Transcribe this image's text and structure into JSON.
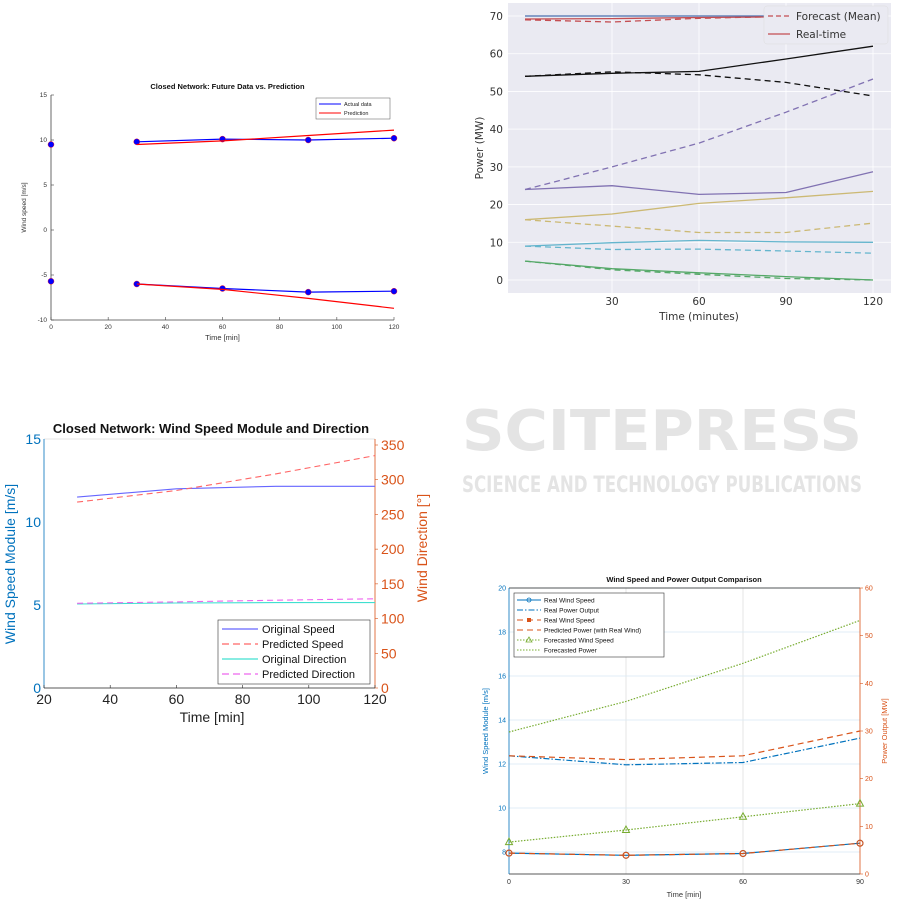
{
  "watermark": {
    "main": "SCITEPRESS",
    "sub": "SCIENCE AND TECHNOLOGY PUBLICATIONS"
  },
  "chart_data": [
    {
      "id": "chart1",
      "type": "line",
      "title": "Closed Network: Future Data vs. Prediction",
      "xlabel": "Time [min]",
      "ylabel": "Wind speed [m/s]",
      "xlim": [
        0,
        120
      ],
      "ylim": [
        -10,
        15
      ],
      "xticks": [
        0,
        20,
        40,
        60,
        80,
        100,
        120
      ],
      "yticks": [
        -10,
        -5,
        0,
        5,
        10,
        15
      ],
      "grid": false,
      "legend_position": "top-right",
      "legend": [
        "Actual data",
        "Prediction"
      ],
      "colors": {
        "actual": "#0000ff",
        "prediction": "#ff0000"
      },
      "history_points": [
        {
          "x": 0,
          "y": 9.5
        },
        {
          "x": 0,
          "y": -5.7
        }
      ],
      "series": [
        {
          "name": "Actual data",
          "component": "upper",
          "x": [
            30,
            60,
            90,
            120
          ],
          "y": [
            9.8,
            10.1,
            10.0,
            10.2
          ],
          "markers": true
        },
        {
          "name": "Prediction",
          "component": "upper",
          "x": [
            30,
            60,
            90,
            120
          ],
          "y": [
            9.5,
            9.9,
            10.5,
            11.1
          ],
          "markers": false
        },
        {
          "name": "Actual data",
          "component": "lower",
          "x": [
            30,
            60,
            90,
            120
          ],
          "y": [
            -6.0,
            -6.5,
            -6.9,
            -6.8
          ],
          "markers": true
        },
        {
          "name": "Prediction",
          "component": "lower",
          "x": [
            30,
            60,
            90,
            120
          ],
          "y": [
            -6.0,
            -6.6,
            -7.6,
            -8.7
          ],
          "markers": false
        }
      ]
    },
    {
      "id": "chart2",
      "type": "line",
      "title": "",
      "xlabel": "Time (minutes)",
      "ylabel": "Power (MW)",
      "xlim": [
        0,
        130
      ],
      "ylim": [
        -3,
        73
      ],
      "xticks": [
        30,
        60,
        90,
        120
      ],
      "yticks": [
        0,
        10,
        20,
        30,
        40,
        50,
        60,
        70
      ],
      "grid": true,
      "legend_position": "top-right",
      "legend": [
        "Forecast (Mean)",
        "Real-time"
      ],
      "series": [
        {
          "name": "Blue real-time",
          "color": "#4c72b0",
          "style": "solid",
          "x": [
            0,
            30,
            60,
            90,
            120
          ],
          "y": [
            70,
            70,
            70,
            70,
            70
          ]
        },
        {
          "name": "Red real-time",
          "color": "#c44e52",
          "style": "solid",
          "x": [
            0,
            30,
            60,
            90,
            120
          ],
          "y": [
            69.2,
            69.3,
            69.6,
            69.8,
            70
          ]
        },
        {
          "name": "Red forecast",
          "color": "#c44e52",
          "style": "dashed",
          "x": [
            0,
            30,
            60,
            90,
            120
          ],
          "y": [
            69,
            68.4,
            69.4,
            69.9,
            70
          ]
        },
        {
          "name": "Black real-time",
          "color": "#111111",
          "style": "solid",
          "x": [
            0,
            30,
            60,
            90,
            120
          ],
          "y": [
            54,
            54.8,
            55.3,
            58.6,
            62
          ]
        },
        {
          "name": "Black forecast",
          "color": "#111111",
          "style": "dashed",
          "x": [
            0,
            30,
            60,
            90,
            120
          ],
          "y": [
            54,
            55.2,
            54.4,
            52.4,
            48.8
          ]
        },
        {
          "name": "Purple forecast",
          "color": "#8172b2",
          "style": "dashed",
          "x": [
            0,
            30,
            60,
            90,
            120
          ],
          "y": [
            24,
            30,
            36.3,
            44.5,
            53.3
          ]
        },
        {
          "name": "Purple real-time",
          "color": "#8172b2",
          "style": "solid",
          "x": [
            0,
            30,
            60,
            90,
            120
          ],
          "y": [
            24,
            25,
            22.7,
            23.2,
            28.7
          ]
        },
        {
          "name": "Gold real-time",
          "color": "#ccb974",
          "style": "solid",
          "x": [
            0,
            30,
            60,
            90,
            120
          ],
          "y": [
            16,
            17.5,
            20.3,
            21.8,
            23.5
          ]
        },
        {
          "name": "Gold forecast",
          "color": "#ccb974",
          "style": "dashed",
          "x": [
            0,
            30,
            60,
            90,
            120
          ],
          "y": [
            16,
            14.3,
            12.6,
            12.6,
            15.1
          ]
        },
        {
          "name": "Cyan real-time",
          "color": "#64b5cd",
          "style": "solid",
          "x": [
            0,
            30,
            60,
            90,
            120
          ],
          "y": [
            9,
            9.9,
            10.5,
            10.1,
            10
          ]
        },
        {
          "name": "Cyan forecast",
          "color": "#64b5cd",
          "style": "dashed",
          "x": [
            0,
            30,
            60,
            90,
            120
          ],
          "y": [
            9,
            8.1,
            8.2,
            7.7,
            7.1
          ]
        },
        {
          "name": "Green real-time",
          "color": "#55a868",
          "style": "solid",
          "x": [
            0,
            30,
            60,
            90,
            120
          ],
          "y": [
            5,
            3,
            1.9,
            0.9,
            0
          ]
        },
        {
          "name": "Green forecast",
          "color": "#55a868",
          "style": "dashed",
          "x": [
            0,
            30,
            60,
            90,
            120
          ],
          "y": [
            5,
            2.7,
            1.5,
            0.4,
            0
          ]
        }
      ]
    },
    {
      "id": "chart3",
      "type": "line",
      "title": "Closed Network: Wind Speed Module and Direction",
      "xlabel": "Time [min]",
      "ylabel_left": "Wind Speed Module [m/s]",
      "ylabel_right": "Wind Direction [°]",
      "xlim": [
        20,
        120
      ],
      "ylim_left": [
        0,
        15
      ],
      "ylim_right": [
        0,
        360
      ],
      "xticks": [
        20,
        40,
        60,
        80,
        100,
        120
      ],
      "yticks_left": [
        0,
        5,
        10,
        15
      ],
      "yticks_right": [
        0,
        50,
        100,
        150,
        200,
        250,
        300,
        350
      ],
      "grid": false,
      "legend_position": "bottom-right",
      "legend": [
        "Original Speed",
        "Predicted Speed",
        "Original Direction",
        "Predicted Direction"
      ],
      "colors": {
        "left_axis": "#0072bd",
        "right_axis": "#d95319"
      },
      "series": [
        {
          "name": "Original Speed",
          "axis": "left",
          "color": "#6666ff",
          "style": "solid",
          "x": [
            30,
            60,
            90,
            120
          ],
          "y": [
            11.5,
            12.0,
            12.15,
            12.15
          ]
        },
        {
          "name": "Predicted Speed",
          "axis": "left",
          "color": "#ff6666",
          "style": "dashed",
          "x": [
            30,
            60,
            90,
            120
          ],
          "y": [
            11.2,
            11.9,
            12.9,
            14.0
          ]
        },
        {
          "name": "Original Direction",
          "axis": "right",
          "color": "#40e0d0",
          "style": "solid",
          "x": [
            30,
            60,
            90,
            120
          ],
          "y": [
            121,
            122.5,
            123,
            123
          ]
        },
        {
          "name": "Predicted Direction",
          "axis": "right",
          "color": "#ee66ee",
          "style": "dashed",
          "x": [
            30,
            60,
            90,
            120
          ],
          "y": [
            122,
            124,
            126.5,
            128.5
          ]
        }
      ]
    },
    {
      "id": "chart4",
      "type": "line",
      "title": "Wind Speed and Power Output Comparison",
      "xlabel": "Time [min]",
      "ylabel_left": "Wind Speed Module [m/s]",
      "ylabel_right": "Power Output [MW]",
      "xlim": [
        0,
        90
      ],
      "ylim_left": [
        7,
        20
      ],
      "ylim_right": [
        0,
        60
      ],
      "xticks": [
        0,
        30,
        60,
        90
      ],
      "yticks_left": [
        8,
        10,
        12,
        14,
        16,
        18,
        20
      ],
      "yticks_right": [
        0,
        10,
        20,
        30,
        40,
        50,
        60
      ],
      "grid": true,
      "legend_position": "top-left",
      "legend": [
        "Real Wind Speed",
        "Real Power Output",
        "Real Wind Speed",
        "Predicted Power (with Real Wind)",
        "Forecasted Wind Speed",
        "Forecasted Power"
      ],
      "colors": {
        "left_axis": "#0072bd",
        "right_axis": "#d95319",
        "forecast": "#77ac30"
      },
      "series": [
        {
          "name": "Real Wind Speed",
          "axis": "left",
          "color": "#0072bd",
          "style": "solid",
          "marker": "circle",
          "x": [
            0,
            30,
            60,
            90
          ],
          "y": [
            7.95,
            7.85,
            7.93,
            8.4
          ]
        },
        {
          "name": "Real Power Output",
          "axis": "right",
          "color": "#0072bd",
          "style": "dashdot",
          "marker": "none",
          "x": [
            0,
            30,
            60,
            90
          ],
          "y": [
            24.8,
            22.9,
            23.4,
            28.5
          ]
        },
        {
          "name": "Real Wind Speed",
          "axis": "left",
          "color": "#d95319",
          "style": "dashed",
          "marker": "square",
          "x": [
            0,
            30,
            60,
            90
          ],
          "y": [
            7.95,
            7.85,
            7.93,
            8.4
          ]
        },
        {
          "name": "Predicted Power (with Real Wind)",
          "axis": "right",
          "color": "#d95319",
          "style": "dashed",
          "marker": "none",
          "x": [
            0,
            30,
            60,
            90
          ],
          "y": [
            24.8,
            24.0,
            24.8,
            30.0
          ]
        },
        {
          "name": "Forecasted Wind Speed",
          "axis": "left",
          "color": "#77ac30",
          "style": "dotted",
          "marker": "triangle",
          "x": [
            0,
            30,
            60,
            90
          ],
          "y": [
            8.45,
            9.0,
            9.6,
            10.2
          ]
        },
        {
          "name": "Forecasted Power",
          "axis": "right",
          "color": "#77ac30",
          "style": "dotted",
          "marker": "none",
          "x": [
            0,
            30,
            60,
            90
          ],
          "y": [
            29.8,
            36.2,
            44.2,
            53.2
          ]
        }
      ]
    }
  ]
}
